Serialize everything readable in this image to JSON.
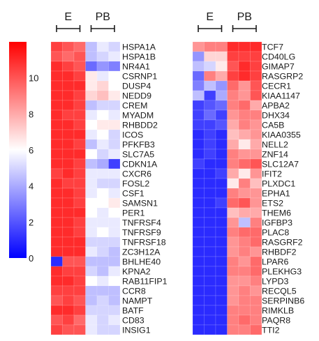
{
  "chart_data": {
    "type": "heatmap",
    "colorbar": {
      "ticks": [
        "0",
        "2",
        "4",
        "6",
        "8",
        "10"
      ],
      "range": [
        0,
        12
      ],
      "low_color": "#0000ff",
      "mid_color": "#ffffff",
      "high_color": "#ff0000"
    },
    "group_labels": [
      "E",
      "PB"
    ],
    "columns_per_group": 3,
    "panels": [
      {
        "genes": [
          "HSPA1A",
          "HSPA1B",
          "NR4A1",
          "CSRNP1",
          "DUSP4",
          "NEDD9",
          "CREM",
          "MYADM",
          "RHBDD2",
          "ICOS",
          "PFKFB3",
          "SLC7A5",
          "CDKN1A",
          "CXCR6",
          "FOSL2",
          "CSF1",
          "SAMSN1",
          "PER1",
          "TNFRSF4",
          "TNFRSF9",
          "TNFRSF18",
          "ZC3H12A",
          "BHLHE40",
          "KPNA2",
          "RAB11FIP1",
          "CCR8",
          "NAMPT",
          "BATF",
          "CD83",
          "INSIG1"
        ],
        "values": [
          [
            10.5,
            10,
            9.5,
            4.5,
            5.5,
            5
          ],
          [
            10,
            9.5,
            10,
            4.5,
            5,
            5.5
          ],
          [
            11,
            10.5,
            10,
            2.5,
            3.5,
            3
          ],
          [
            11,
            11,
            10.5,
            6.5,
            5.5,
            6
          ],
          [
            11,
            11,
            11,
            6.5,
            7,
            6
          ],
          [
            11,
            11,
            10.5,
            7,
            7.5,
            6.5
          ],
          [
            11,
            11,
            10.5,
            4.5,
            5,
            5
          ],
          [
            11,
            10.5,
            10.5,
            5.5,
            6,
            5.5
          ],
          [
            11,
            11,
            10.5,
            6,
            6.5,
            6.5
          ],
          [
            11,
            11,
            11,
            5.5,
            6,
            5
          ],
          [
            11,
            11,
            10.5,
            4.5,
            5.5,
            5
          ],
          [
            11,
            11,
            11,
            6,
            5,
            5.5
          ],
          [
            11,
            11,
            10.5,
            4.5,
            4,
            1.5
          ],
          [
            10.5,
            11,
            10.5,
            5.5,
            5.5,
            5.5
          ],
          [
            11,
            10.5,
            10.5,
            5.5,
            5,
            5
          ],
          [
            11,
            11,
            10.5,
            5.5,
            6,
            5.5
          ],
          [
            11,
            11,
            10.5,
            6,
            6,
            6.5
          ],
          [
            11,
            11,
            11,
            6,
            5.5,
            6
          ],
          [
            11,
            11,
            10.5,
            5.5,
            5.5,
            5.5
          ],
          [
            11,
            11,
            10.5,
            5.5,
            6,
            5.5
          ],
          [
            11,
            11,
            11,
            5,
            5,
            5
          ],
          [
            11,
            11,
            11,
            5.5,
            5,
            4.5
          ],
          [
            1,
            10,
            10,
            4.5,
            4.5,
            4.5
          ],
          [
            11,
            10.5,
            10.5,
            5,
            4.5,
            5.5
          ],
          [
            11,
            11,
            10.5,
            6,
            5.5,
            6
          ],
          [
            10.5,
            10.5,
            10.5,
            4.5,
            4.5,
            4.5
          ],
          [
            10,
            10.5,
            10,
            4.5,
            5,
            4.5
          ],
          [
            11,
            11,
            10.5,
            5,
            5,
            5
          ],
          [
            10,
            10.5,
            9.5,
            5.5,
            5,
            5.5
          ],
          [
            10.5,
            10,
            10,
            5.5,
            5,
            5
          ]
        ]
      },
      {
        "genes": [
          "TCF7",
          "CD40LG",
          "GIMAP7",
          "RASGRP2",
          "CECR1",
          "KIAA1147",
          "APBA2",
          "DHX34",
          "CA5B",
          "KIAA0355",
          "NELL2",
          "ZNF14",
          "SLC12A7",
          "IFIT2",
          "PLXDC1",
          "EPHA1",
          "ETS2",
          "THEM6",
          "IGFBP3",
          "PLAC8",
          "RASGRF2",
          "RHBDF2",
          "LPAR6",
          "PLEKHG3",
          "LYPD3",
          "RECQL5",
          "SERPINB6",
          "RIMKLB",
          "PAQR8",
          "TTI2"
        ],
        "values": [
          [
            8.5,
            9,
            9,
            11,
            11,
            11
          ],
          [
            3.5,
            7,
            7,
            10.5,
            10.5,
            10.5
          ],
          [
            4.5,
            5,
            6.5,
            10,
            11,
            10.5
          ],
          [
            2.5,
            9,
            8,
            10.5,
            11,
            10.5
          ],
          [
            3,
            4.5,
            3.5,
            9.5,
            8.5,
            10
          ],
          [
            4.5,
            1.5,
            4,
            9,
            8.5,
            10
          ],
          [
            1.5,
            2,
            2.5,
            9,
            9.5,
            8
          ],
          [
            1.5,
            2.5,
            1.5,
            8.5,
            9,
            9
          ],
          [
            1.5,
            1.5,
            2,
            8,
            9,
            8.5
          ],
          [
            1,
            1.5,
            1,
            7.5,
            8,
            8.5
          ],
          [
            1,
            1.5,
            1,
            8,
            6.5,
            8
          ],
          [
            1,
            1.5,
            1,
            9,
            8.5,
            8.5
          ],
          [
            1.5,
            1,
            1,
            9,
            9.5,
            10
          ],
          [
            1,
            1,
            1.5,
            8,
            6.5,
            8.5
          ],
          [
            1,
            1,
            1,
            6.5,
            9,
            7.5
          ],
          [
            1,
            1,
            1,
            9,
            8.5,
            8.5
          ],
          [
            1,
            1,
            1.5,
            9.5,
            10,
            8.5
          ],
          [
            1,
            1,
            1,
            7.5,
            8,
            8
          ],
          [
            1,
            1,
            1,
            8.5,
            4.5,
            9
          ],
          [
            1,
            1,
            1,
            9,
            9.5,
            9.5
          ],
          [
            1,
            1,
            1,
            8.5,
            9,
            9.5
          ],
          [
            1,
            1,
            1,
            8.5,
            9,
            8.5
          ],
          [
            1,
            1,
            1,
            9,
            8.5,
            9.5
          ],
          [
            1,
            1,
            1,
            9,
            9,
            9.5
          ],
          [
            1,
            1,
            1,
            8.5,
            8.5,
            9
          ],
          [
            1,
            1,
            1,
            8.5,
            9,
            8.5
          ],
          [
            1,
            1,
            1,
            8.5,
            9,
            9
          ],
          [
            1,
            1,
            1,
            9,
            9,
            9
          ],
          [
            1,
            1,
            1,
            9,
            9.5,
            9
          ],
          [
            1,
            1,
            1,
            9,
            9,
            9.5
          ]
        ]
      }
    ]
  }
}
